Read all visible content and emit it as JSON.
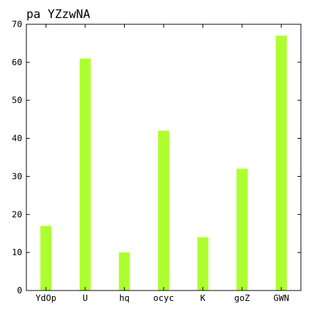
{
  "chart_data": {
    "type": "bar",
    "title": "pa YZzwNA",
    "categories": [
      "YdOp",
      "U",
      "hq",
      "ocyc",
      "K",
      "goZ",
      "GWN"
    ],
    "values": [
      17,
      61,
      10,
      42,
      14,
      32,
      67
    ],
    "xlabel": "",
    "ylabel": "",
    "ylim": [
      0,
      70
    ],
    "yticks": [
      0,
      10,
      20,
      30,
      40,
      50,
      60,
      70
    ],
    "bar_color": "#adff2f",
    "grid": false,
    "legend": "none"
  }
}
